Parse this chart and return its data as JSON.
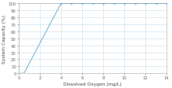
{
  "x": [
    0,
    0.5,
    4,
    5,
    6,
    7,
    8,
    9,
    10,
    11,
    12,
    13,
    14
  ],
  "y": [
    0,
    0,
    100,
    100,
    100,
    100,
    100,
    100,
    100,
    100,
    100,
    100,
    100
  ],
  "line_color": "#6aafd4",
  "marker_color": "#6aafd4",
  "marker": "P",
  "marker_size": 2.0,
  "xlabel": "Dissolved Oxygen (mg/L)",
  "ylabel": "System Capacity (%)",
  "xlim": [
    0,
    14
  ],
  "ylim": [
    0,
    100
  ],
  "xticks": [
    0,
    2,
    4,
    6,
    8,
    10,
    12,
    14
  ],
  "yticks": [
    0,
    10,
    20,
    30,
    40,
    50,
    60,
    70,
    80,
    90,
    100
  ],
  "grid_color": "#C8DCE8",
  "xlabel_fontsize": 4.2,
  "ylabel_fontsize": 4.2,
  "tick_fontsize": 3.8,
  "background_color": "#FFFFFF",
  "linewidth": 0.7,
  "spine_color": "#AAAAAA"
}
